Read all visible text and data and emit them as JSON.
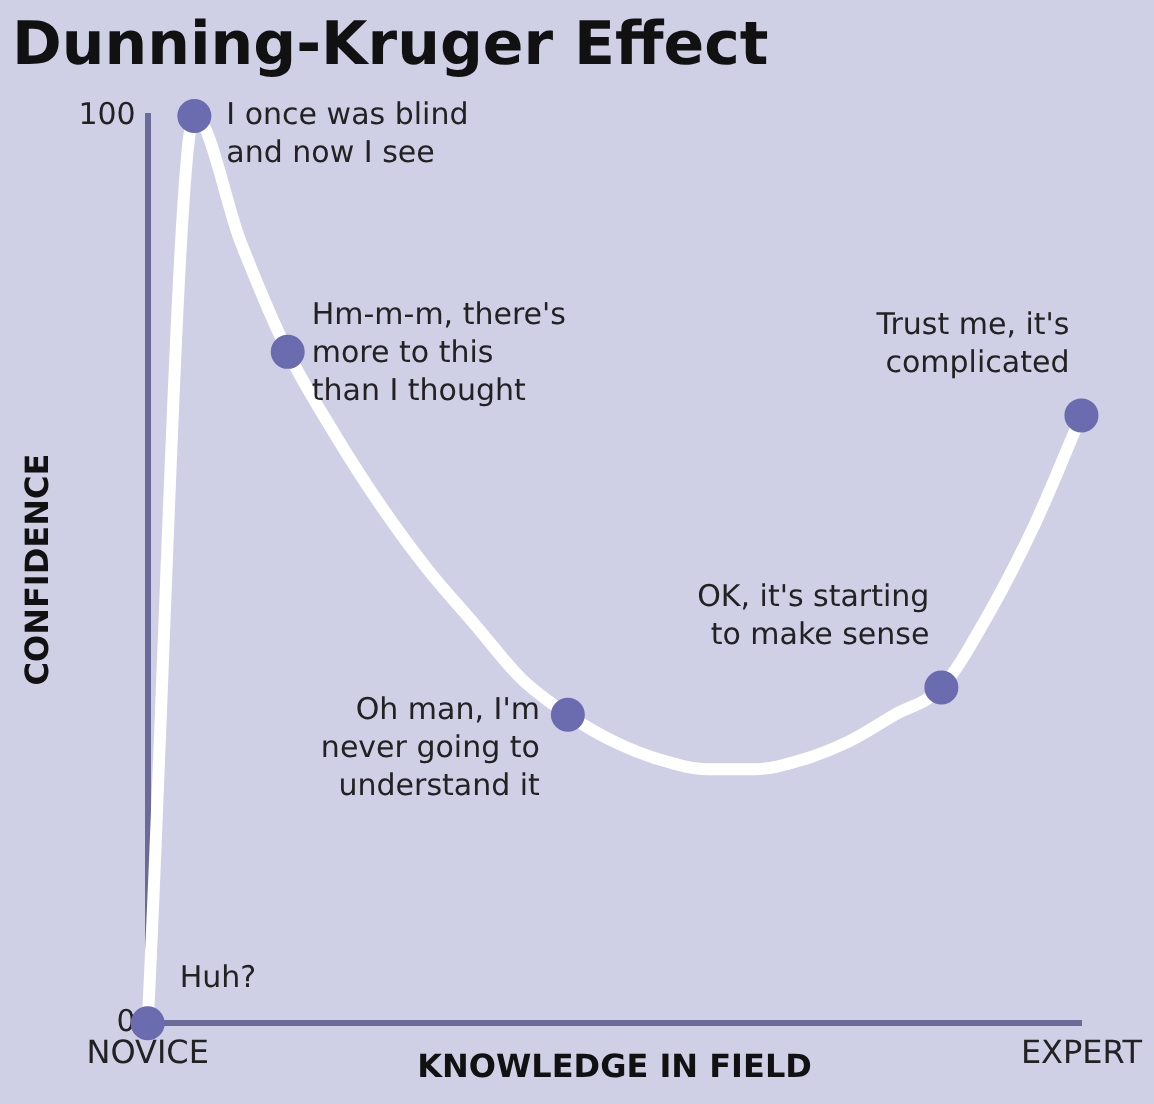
{
  "chart_data": {
    "type": "line",
    "title": "Dunning-Kruger Effect",
    "xlabel": "KNOWLEDGE IN FIELD",
    "ylabel": "CONFIDENCE",
    "categories": [
      "NOVICE",
      null,
      null,
      null,
      null,
      null,
      null,
      null,
      null,
      null,
      null,
      null,
      null,
      null,
      null,
      null,
      null,
      null,
      null,
      null,
      "EXPERT"
    ],
    "ylim": [
      0,
      100
    ],
    "yticks": [
      0,
      100
    ],
    "grid": false,
    "legend": false,
    "series": [
      {
        "type": "line",
        "color": "#ffffff",
        "marker": "none",
        "values": [
          0,
          100,
          86,
          74,
          65,
          57,
          50,
          44,
          38,
          34,
          31,
          29,
          28,
          28,
          29,
          31,
          34,
          37,
          45,
          55,
          67
        ]
      },
      {
        "type": "scatter",
        "color": "#6b6bb0",
        "marker": "circle",
        "values": [
          0,
          100,
          null,
          74,
          null,
          null,
          null,
          null,
          null,
          34,
          null,
          null,
          null,
          null,
          null,
          null,
          null,
          37,
          null,
          null,
          67
        ]
      }
    ],
    "annotations": [
      "Huh?",
      "I once was blind\nand now I see",
      "Hm-m-m, there's\nmore to this\nthan I thought",
      "Oh man, I'm\nnever going to\nunderstand it",
      "OK, it's starting\nto make sense",
      "Trust me, it's\ncomplicated"
    ]
  }
}
